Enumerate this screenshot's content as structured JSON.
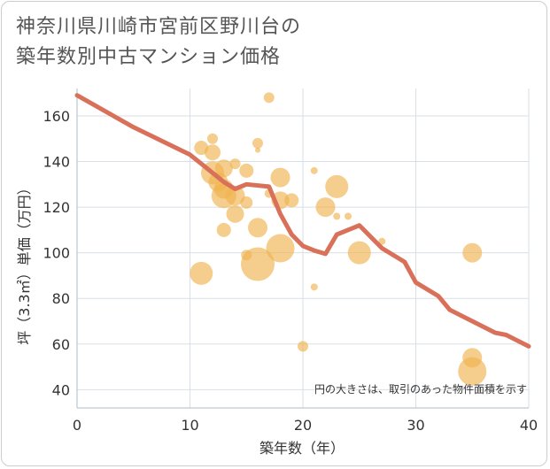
{
  "chart_data": {
    "type": "scatter",
    "title_lines": [
      "神奈川県川崎市宮前区野川台の",
      "築年数別中古マンション価格"
    ],
    "xlabel": "築年数（年）",
    "ylabel": "坪（3.3㎡）単価（万円）",
    "xlim": [
      0,
      40
    ],
    "ylim": [
      32,
      172
    ],
    "xticks": [
      0,
      10,
      20,
      30,
      40
    ],
    "yticks": [
      40,
      60,
      80,
      100,
      120,
      140,
      160
    ],
    "grid": true,
    "note": "円の大きさは、取引のあった物件面積を示す",
    "colors": {
      "bubble": "#f0b24e",
      "line": "#d9705a",
      "grid": "#d9dfe6",
      "axis": "#aebccb"
    },
    "bubbles": [
      {
        "x": 11,
        "y": 146,
        "s": 8
      },
      {
        "x": 12,
        "y": 150,
        "s": 6
      },
      {
        "x": 12,
        "y": 144,
        "s": 9
      },
      {
        "x": 12,
        "y": 135,
        "s": 13
      },
      {
        "x": 13,
        "y": 137,
        "s": 10
      },
      {
        "x": 12.5,
        "y": 131,
        "s": 11
      },
      {
        "x": 13,
        "y": 125,
        "s": 14
      },
      {
        "x": 13,
        "y": 128,
        "s": 11
      },
      {
        "x": 14,
        "y": 139,
        "s": 6
      },
      {
        "x": 14,
        "y": 125,
        "s": 11
      },
      {
        "x": 14,
        "y": 117,
        "s": 10
      },
      {
        "x": 15,
        "y": 136,
        "s": 8
      },
      {
        "x": 15,
        "y": 122,
        "s": 7
      },
      {
        "x": 13,
        "y": 110,
        "s": 8
      },
      {
        "x": 16,
        "y": 148,
        "s": 6
      },
      {
        "x": 16,
        "y": 145,
        "s": 3
      },
      {
        "x": 17,
        "y": 168,
        "s": 6
      },
      {
        "x": 17,
        "y": 126,
        "s": 5
      },
      {
        "x": 18,
        "y": 133,
        "s": 11
      },
      {
        "x": 18,
        "y": 123,
        "s": 10
      },
      {
        "x": 19,
        "y": 123,
        "s": 8
      },
      {
        "x": 16,
        "y": 111,
        "s": 11
      },
      {
        "x": 18,
        "y": 102,
        "s": 16
      },
      {
        "x": 16,
        "y": 95,
        "s": 19
      },
      {
        "x": 15,
        "y": 99,
        "s": 6
      },
      {
        "x": 11,
        "y": 91,
        "s": 13
      },
      {
        "x": 21,
        "y": 136,
        "s": 4
      },
      {
        "x": 22,
        "y": 120,
        "s": 11
      },
      {
        "x": 23,
        "y": 129,
        "s": 13
      },
      {
        "x": 23,
        "y": 116,
        "s": 4
      },
      {
        "x": 24,
        "y": 116,
        "s": 4
      },
      {
        "x": 21,
        "y": 85,
        "s": 4
      },
      {
        "x": 20,
        "y": 59,
        "s": 6
      },
      {
        "x": 25,
        "y": 100,
        "s": 13
      },
      {
        "x": 27,
        "y": 105,
        "s": 4
      },
      {
        "x": 35,
        "y": 100,
        "s": 11
      },
      {
        "x": 35,
        "y": 54,
        "s": 11
      },
      {
        "x": 35,
        "y": 48,
        "s": 16
      }
    ],
    "trend": [
      [
        0,
        169
      ],
      [
        5,
        155
      ],
      [
        10,
        143
      ],
      [
        11,
        139
      ],
      [
        13,
        131
      ],
      [
        14,
        128
      ],
      [
        15,
        130
      ],
      [
        17,
        129
      ],
      [
        18,
        117
      ],
      [
        19,
        108
      ],
      [
        20,
        103
      ],
      [
        21,
        101
      ],
      [
        22,
        99.5
      ],
      [
        23,
        108
      ],
      [
        25,
        112
      ],
      [
        27,
        102
      ],
      [
        29,
        96
      ],
      [
        30,
        87
      ],
      [
        32,
        81
      ],
      [
        33,
        75
      ],
      [
        35,
        70
      ],
      [
        37,
        65
      ],
      [
        38,
        64
      ],
      [
        40,
        59
      ]
    ]
  }
}
